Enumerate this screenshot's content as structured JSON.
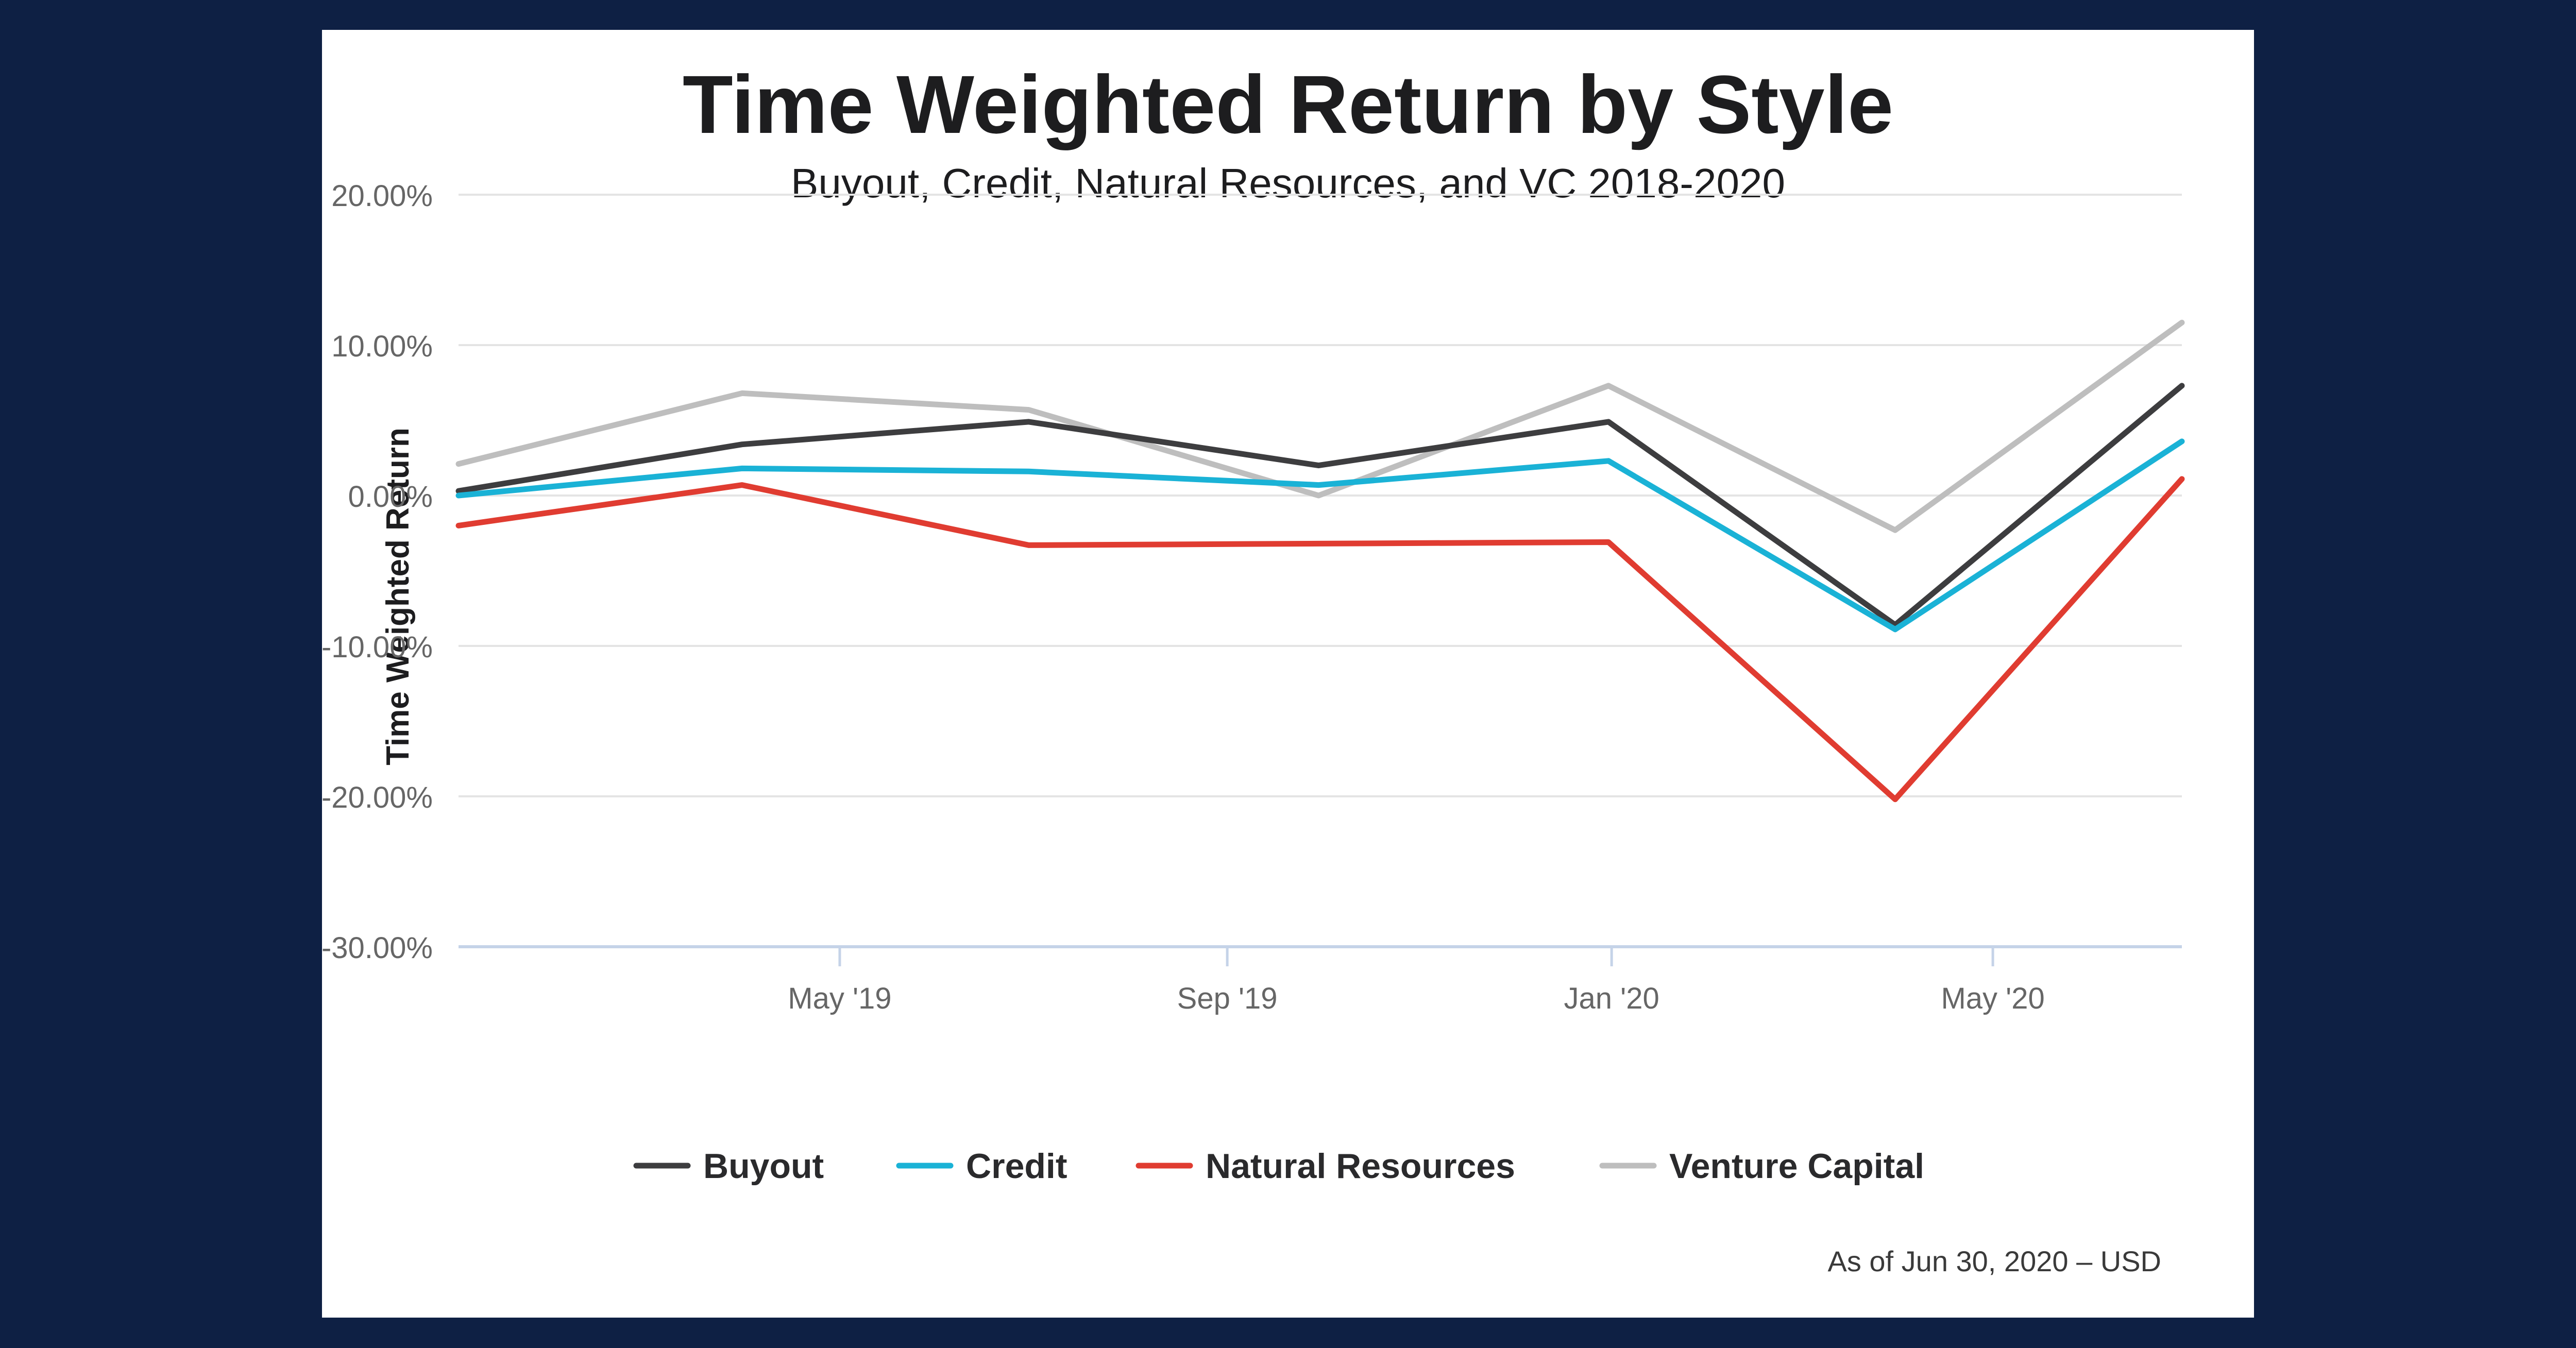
{
  "chart_data": {
    "type": "line",
    "title": "Time Weighted Return by Style",
    "subtitle": "Buyout, Credit, Natural Resources, and VC 2018-2020",
    "ylabel": "Time Weighted Return",
    "xlabel": "",
    "footnote": "As of Jun 30, 2020 – USD",
    "ylim": [
      -30,
      20
    ],
    "y_ticks": [
      20,
      10,
      0,
      -10,
      -20,
      -30
    ],
    "y_tick_labels": [
      "20.00%",
      "10.00%",
      "0.00%",
      "-10.00%",
      "-20.00%",
      "-30.00%"
    ],
    "x_range": [
      "2018-12-31",
      "2020-06-30"
    ],
    "x_ticks": [
      "2019-05-01",
      "2019-09-01",
      "2020-01-01",
      "2020-05-01"
    ],
    "x_tick_labels": [
      "May '19",
      "Sep '19",
      "Jan '20",
      "May '20"
    ],
    "x": [
      "2018-12-31",
      "2019-03-31",
      "2019-06-30",
      "2019-09-30",
      "2019-12-31",
      "2020-03-31",
      "2020-06-30"
    ],
    "grid": true,
    "legend_position": "bottom",
    "series": [
      {
        "name": "Buyout",
        "color": "#3d3d3f",
        "values": [
          0.3,
          3.4,
          4.9,
          2.0,
          4.9,
          -8.6,
          7.3
        ]
      },
      {
        "name": "Credit",
        "color": "#1ab2d6",
        "values": [
          0.0,
          1.8,
          1.6,
          0.7,
          2.3,
          -8.9,
          3.6
        ]
      },
      {
        "name": "Natural Resources",
        "color": "#e03c31",
        "values": [
          -2.0,
          0.7,
          -3.3,
          -3.2,
          -3.1,
          -20.2,
          1.1
        ]
      },
      {
        "name": "Venture Capital",
        "color": "#bebebe",
        "values": [
          2.1,
          6.8,
          5.7,
          0.0,
          7.3,
          -2.3,
          11.5
        ]
      }
    ]
  }
}
